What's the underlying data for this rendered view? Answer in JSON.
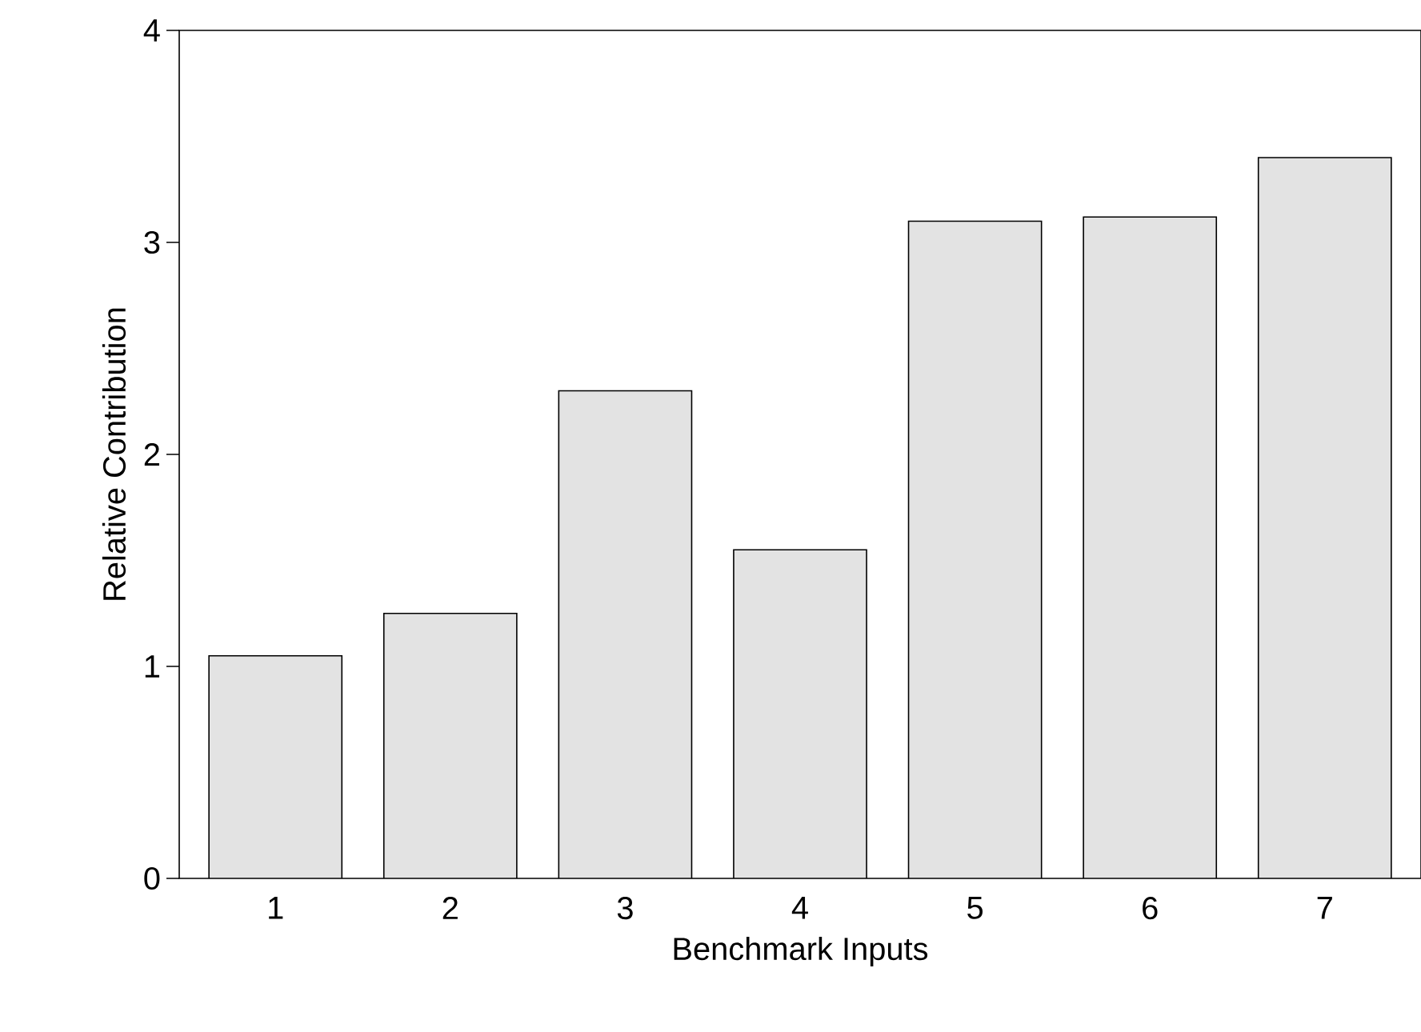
{
  "chart_data": {
    "type": "bar",
    "xlabel": "Benchmark Inputs",
    "ylabel": "Relative Contribution",
    "categories": [
      "1",
      "2",
      "3",
      "4",
      "5",
      "6",
      "7"
    ],
    "values": [
      1.05,
      1.25,
      2.3,
      1.55,
      3.1,
      3.12,
      3.4
    ],
    "color": "#e3e3e3",
    "ylim": [
      0,
      4
    ],
    "yticks": [
      0,
      1,
      2,
      3,
      4
    ]
  }
}
